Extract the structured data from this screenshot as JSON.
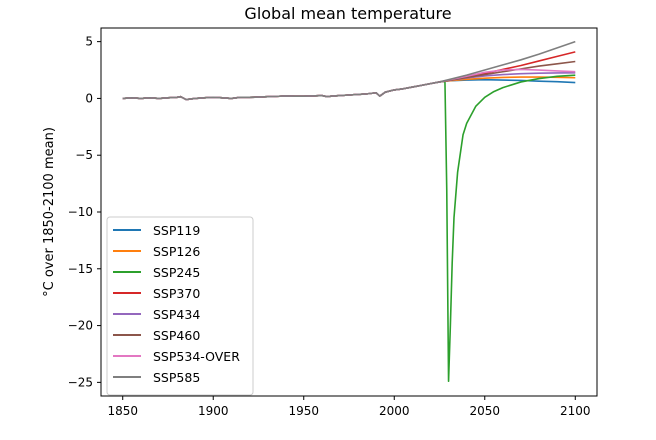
{
  "chart_data": {
    "type": "line",
    "title": "Global mean temperature",
    "xlabel": "",
    "ylabel": "°C over 1850-2100 mean)",
    "xlim": [
      1838,
      2112
    ],
    "ylim": [
      -26.2,
      6.2
    ],
    "xticks": [
      1850,
      1900,
      1950,
      2000,
      2050,
      2100
    ],
    "yticks": [
      5,
      0,
      -5,
      -10,
      -15,
      -20,
      -25
    ],
    "xtick_labels": [
      "1850",
      "1900",
      "1950",
      "2000",
      "2050",
      "2100"
    ],
    "ytick_labels": [
      "5",
      "0",
      "−5",
      "−10",
      "−15",
      "−20",
      "−25"
    ],
    "grid": false,
    "legend_position": "lower-left",
    "historical": {
      "x": [
        1850,
        1855,
        1860,
        1865,
        1870,
        1875,
        1880,
        1882,
        1885,
        1890,
        1895,
        1900,
        1905,
        1910,
        1915,
        1920,
        1925,
        1930,
        1935,
        1940,
        1945,
        1950,
        1955,
        1960,
        1963,
        1965,
        1970,
        1975,
        1980,
        1985,
        1990,
        1992,
        1995,
        2000,
        2005,
        2010,
        2015,
        2020,
        2025
      ],
      "y": [
        0.0,
        0.05,
        0.0,
        0.05,
        0.0,
        0.05,
        0.1,
        0.15,
        -0.1,
        0.0,
        0.05,
        0.1,
        0.05,
        0.0,
        0.1,
        0.1,
        0.12,
        0.15,
        0.18,
        0.22,
        0.2,
        0.2,
        0.22,
        0.25,
        0.15,
        0.2,
        0.25,
        0.3,
        0.35,
        0.4,
        0.5,
        0.2,
        0.55,
        0.75,
        0.85,
        1.0,
        1.15,
        1.3,
        1.45
      ]
    },
    "series": [
      {
        "name": "SSP119",
        "color": "#1f77b4",
        "x": [
          2025,
          2030,
          2040,
          2050,
          2060,
          2070,
          2080,
          2090,
          2100
        ],
        "y": [
          1.45,
          1.55,
          1.62,
          1.65,
          1.62,
          1.58,
          1.52,
          1.47,
          1.4
        ]
      },
      {
        "name": "SSP126",
        "color": "#ff7f0e",
        "x": [
          2025,
          2030,
          2040,
          2050,
          2060,
          2070,
          2080,
          2090,
          2100
        ],
        "y": [
          1.45,
          1.55,
          1.68,
          1.78,
          1.85,
          1.88,
          1.88,
          1.86,
          1.82
        ]
      },
      {
        "name": "SSP245",
        "color": "#2ca02c",
        "x": [
          2025,
          2028,
          2029,
          2030,
          2031,
          2032,
          2033,
          2035,
          2038,
          2040,
          2045,
          2050,
          2055,
          2060,
          2070,
          2080,
          2090,
          2100
        ],
        "y": [
          1.45,
          1.5,
          -8.0,
          -24.9,
          -20.0,
          -14.5,
          -10.5,
          -6.5,
          -3.2,
          -2.2,
          -0.7,
          0.1,
          0.6,
          0.95,
          1.45,
          1.75,
          1.95,
          2.05
        ]
      },
      {
        "name": "SSP370",
        "color": "#d62728",
        "x": [
          2025,
          2030,
          2040,
          2050,
          2060,
          2070,
          2080,
          2090,
          2100
        ],
        "y": [
          1.45,
          1.6,
          1.9,
          2.2,
          2.55,
          2.9,
          3.3,
          3.7,
          4.1
        ]
      },
      {
        "name": "SSP434",
        "color": "#9467bd",
        "x": [
          2025,
          2030,
          2040,
          2050,
          2060,
          2070,
          2080,
          2090,
          2100
        ],
        "y": [
          1.45,
          1.58,
          1.8,
          1.98,
          2.1,
          2.18,
          2.22,
          2.24,
          2.25
        ]
      },
      {
        "name": "SSP460",
        "color": "#8c564b",
        "x": [
          2025,
          2030,
          2040,
          2050,
          2060,
          2070,
          2080,
          2090,
          2100
        ],
        "y": [
          1.45,
          1.58,
          1.85,
          2.1,
          2.35,
          2.6,
          2.85,
          3.05,
          3.25
        ]
      },
      {
        "name": "SSP534-OVER",
        "color": "#e377c2",
        "x": [
          2025,
          2030,
          2040,
          2050,
          2060,
          2070,
          2080,
          2090,
          2100
        ],
        "y": [
          1.45,
          1.62,
          1.95,
          2.3,
          2.5,
          2.55,
          2.5,
          2.42,
          2.35
        ]
      },
      {
        "name": "SSP585",
        "color": "#7f7f7f",
        "x": [
          2025,
          2030,
          2040,
          2050,
          2060,
          2070,
          2080,
          2090,
          2100
        ],
        "y": [
          1.45,
          1.65,
          2.05,
          2.5,
          2.95,
          3.4,
          3.9,
          4.45,
          5.0
        ]
      }
    ]
  }
}
